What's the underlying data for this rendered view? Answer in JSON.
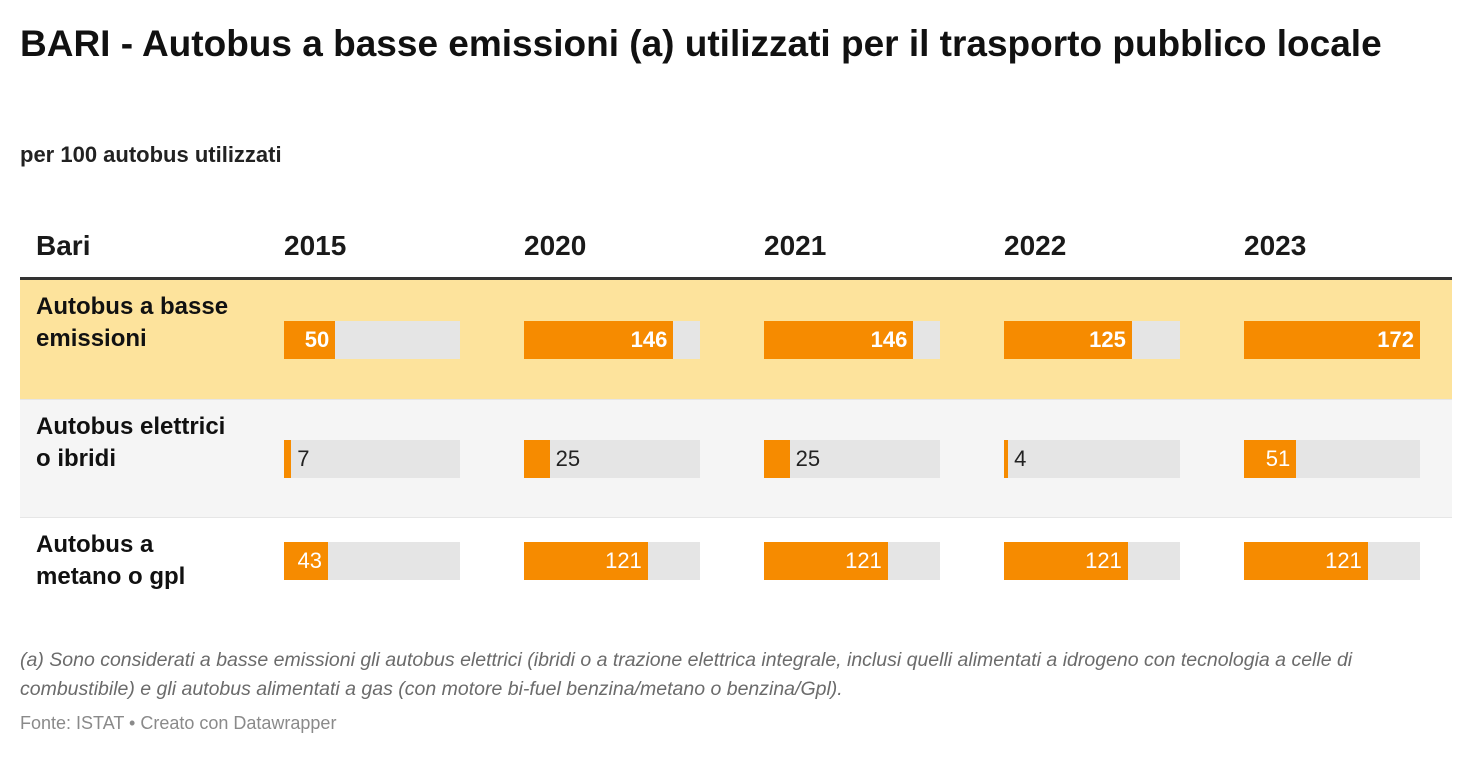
{
  "title": "BARI - Autobus a basse emissioni (a) utilizzati per il trasporto pubblico locale",
  "subtitle": "per 100 autobus utilizzati",
  "footnote": "(a) Sono considerati a basse emissioni gli autobus elettrici (ibridi o a trazione elettrica integrale, inclusi quelli alimentati a idrogeno con tecnologia a celle di combustibile) e gli autobus alimentati a gas (con motore bi-fuel benzina/metano o benzina/Gpl).",
  "source": "Fonte: ISTAT • Creato con Datawrapper",
  "colors": {
    "bar": "#f68b00",
    "track": "#e5e5e5",
    "highlight_row": "#fde39c",
    "alt_row": "#f5f5f5"
  },
  "chart_data": {
    "type": "table",
    "row_header": "Bari",
    "columns": [
      "2015",
      "2020",
      "2021",
      "2022",
      "2023"
    ],
    "bar_scale_max": 172,
    "rows": [
      {
        "label": "Autobus a basse emissioni",
        "values": [
          50,
          146,
          146,
          125,
          172
        ],
        "highlight": true
      },
      {
        "label": "Autobus elettrici o ibridi",
        "values": [
          7,
          25,
          25,
          4,
          51
        ],
        "highlight": false
      },
      {
        "label": "Autobus a metano o gpl",
        "values": [
          43,
          121,
          121,
          121,
          121
        ],
        "highlight": false
      }
    ]
  }
}
